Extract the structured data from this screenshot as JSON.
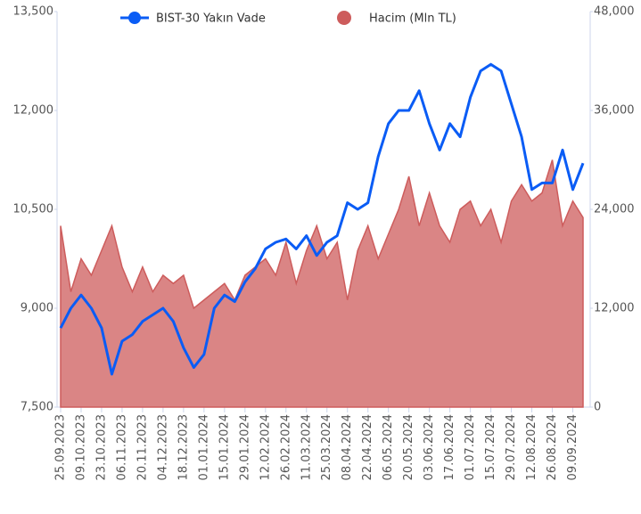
{
  "chart_data": {
    "type": "line-area",
    "categories": [
      "25.09.2023",
      null,
      "09.10.2023",
      null,
      "23.10.2023",
      null,
      "06.11.2023",
      null,
      "20.11.2023",
      null,
      "04.12.2023",
      null,
      "18.12.2023",
      null,
      "01.01.2024",
      null,
      "15.01.2024",
      null,
      "29.01.2024",
      null,
      "12.02.2024",
      null,
      "26.02.2024",
      null,
      "11.03.2024",
      null,
      "25.03.2024",
      null,
      "08.04.2024",
      null,
      "22.04.2024",
      null,
      "06.05.2024",
      null,
      "20.05.2024",
      null,
      "03.06.2024",
      null,
      "17.06.2024",
      null,
      "01.07.2024",
      null,
      "15.07.2024",
      null,
      "29.07.2024",
      null,
      "12.08.2024",
      null,
      "26.08.2024",
      null,
      "09.09.2024",
      null
    ],
    "series": [
      {
        "name": "BIST-30 Yakın Vade",
        "color": "#0a5cf5",
        "kind": "line",
        "values": [
          8700,
          9000,
          9200,
          9000,
          8700,
          8000,
          8500,
          8600,
          8800,
          8900,
          9000,
          8800,
          8400,
          8100,
          8300,
          9000,
          9200,
          9100,
          9400,
          9600,
          9900,
          10000,
          10050,
          9900,
          10100,
          9800,
          10000,
          10100,
          10600,
          10500,
          10600,
          11300,
          11800,
          12000,
          12000,
          12300,
          11800,
          11400,
          11800,
          11600,
          12200,
          12600,
          12700,
          12600,
          12100,
          11600,
          10800,
          10900,
          10900,
          11400,
          10800,
          11200
        ]
      },
      {
        "name": "Hacim (Mln TL)",
        "color": "#cd5c5c",
        "kind": "area",
        "axis": "y2",
        "values": [
          22000,
          14000,
          18000,
          16000,
          19000,
          22000,
          17000,
          14000,
          17000,
          14000,
          16000,
          15000,
          16000,
          12000,
          13000,
          14000,
          15000,
          13000,
          16000,
          17000,
          18000,
          16000,
          20000,
          15000,
          19000,
          22000,
          18000,
          20000,
          13000,
          19000,
          22000,
          18000,
          21000,
          24000,
          28000,
          22000,
          26000,
          22000,
          20000,
          24000,
          25000,
          22000,
          24000,
          20000,
          25000,
          27000,
          25000,
          26000,
          30000,
          22000,
          25000,
          23000
        ]
      }
    ],
    "ylim": [
      7500,
      13500
    ],
    "yticks": [
      {
        "value": 7500,
        "label": "7,500"
      },
      {
        "value": 9000,
        "label": "9,000"
      },
      {
        "value": 10500,
        "label": "10,500"
      },
      {
        "value": 12000,
        "label": "12,000"
      },
      {
        "value": 13500,
        "label": "13,500"
      }
    ],
    "y2lim": [
      0,
      48000
    ],
    "y2ticks": [
      0,
      {
        "value": 12000,
        "label": "12,000"
      },
      {
        "value": 24000,
        "label": "24,000"
      },
      {
        "value": 36000,
        "label": "36,000"
      },
      {
        "value": 48000,
        "label": "48,000"
      }
    ]
  }
}
